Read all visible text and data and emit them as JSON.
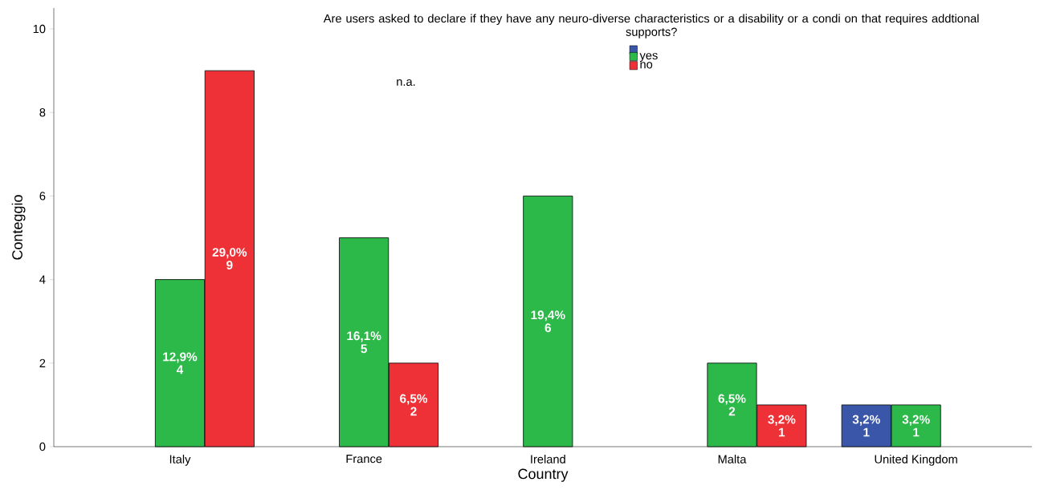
{
  "chart_data": {
    "type": "bar",
    "title": "Are users asked to declare if they have any neuro-diverse characteristics or a disability or a condi  on that requires addtional supports?",
    "xlabel": "Country",
    "ylabel": "Conteggio",
    "categories": [
      "Italy",
      "France",
      "Ireland",
      "Malta",
      "United Kingdom"
    ],
    "series": [
      {
        "name": null,
        "color": "#3a56a8",
        "values": [
          null,
          null,
          null,
          null,
          1
        ],
        "value_labels": [
          null,
          null,
          null,
          null,
          "3,2%\n1"
        ]
      },
      {
        "name": "yes",
        "color": "#2db84a",
        "values": [
          4,
          5,
          6,
          2,
          1
        ],
        "value_labels": [
          "12,9%\n4",
          "16,1%\n5",
          "19,4%\n6",
          "6,5%\n2",
          "3,2%\n1"
        ]
      },
      {
        "name": "no",
        "color": "#ee3137",
        "values": [
          9,
          2,
          null,
          1,
          null
        ],
        "value_labels": [
          "29,0%\n9",
          "6,5%\n2",
          null,
          "3,2%\n1",
          null
        ]
      }
    ],
    "annotations": [
      "n.a."
    ],
    "ylim": [
      0,
      10.5
    ],
    "yticks": [
      0,
      2,
      4,
      6,
      8,
      10
    ],
    "grid": false,
    "legend": "top"
  }
}
